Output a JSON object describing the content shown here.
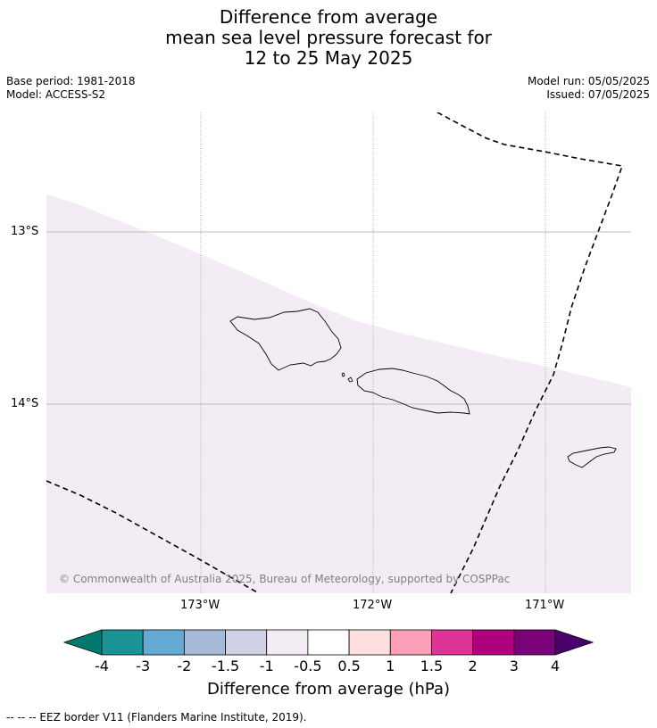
{
  "header": {
    "title_lines": [
      "Difference from average",
      "mean sea level pressure forecast for",
      "12 to 25 May 2025"
    ],
    "base_period": "Base period: 1981-2018",
    "model": "Model: ACCESS-S2",
    "model_run": "Model run: 05/05/2025",
    "issued": "Issued: 07/05/2025"
  },
  "map": {
    "lat_labels": [
      "13°S",
      "14°S"
    ],
    "lon_labels": [
      "173°W",
      "172°W",
      "171°W"
    ],
    "copyright": "© Commonwealth of Australia 2025, Bureau of Meteorology, supported by COSPPac",
    "shaded_category": "-1 to -0.5",
    "shaded_color": "#f4ecf5"
  },
  "colorbar": {
    "ticks": [
      "-4",
      "-3",
      "-2",
      "-1.5",
      "-1",
      "-0.5",
      "0.5",
      "1",
      "1.5",
      "2",
      "3",
      "4"
    ],
    "colors": [
      "#007a6e",
      "#1a9396",
      "#65aad5",
      "#a8bada",
      "#cfd1e6",
      "#f4ecf5",
      "#ffffff",
      "#fde0dd",
      "#fa9fb5",
      "#dd3497",
      "#ae017e",
      "#7a0177",
      "#49006a"
    ],
    "title": "Difference from average (hPa)"
  },
  "footer": {
    "legend": "--  --  -- EEZ border V11 (Flanders Marine Institute, 2019)."
  }
}
